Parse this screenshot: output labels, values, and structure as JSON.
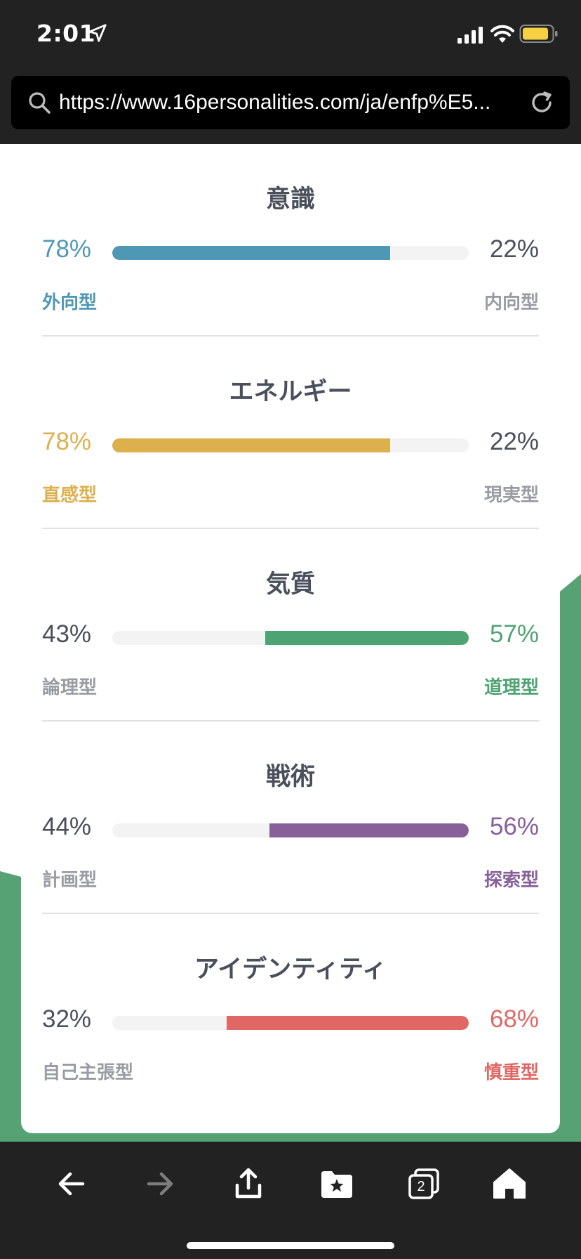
{
  "status_bar": {
    "time": "2:01"
  },
  "browser": {
    "url": "https://www.16personalities.com/ja/enfp%E5..."
  },
  "traits": [
    {
      "title": "意識",
      "left_label": "外向型",
      "left_percent": "78%",
      "right_label": "内向型",
      "right_percent": "22%",
      "fill_side": "left",
      "fill_fraction": 0.78,
      "color": "#4f98b5"
    },
    {
      "title": "エネルギー",
      "left_label": "直感型",
      "left_percent": "78%",
      "right_label": "現実型",
      "right_percent": "22%",
      "fill_side": "left",
      "fill_fraction": 0.78,
      "color": "#ddb04e"
    },
    {
      "title": "気質",
      "left_label": "論理型",
      "left_percent": "43%",
      "right_label": "道理型",
      "right_percent": "57%",
      "fill_side": "right",
      "fill_fraction": 0.57,
      "color": "#4ea372"
    },
    {
      "title": "戦術",
      "left_label": "計画型",
      "left_percent": "44%",
      "right_label": "探索型",
      "right_percent": "56%",
      "fill_side": "right",
      "fill_fraction": 0.56,
      "color": "#87609a"
    },
    {
      "title": "アイデンティティ",
      "left_label": "自己主張型",
      "left_percent": "32%",
      "right_label": "慎重型",
      "right_percent": "68%",
      "fill_side": "right",
      "fill_fraction": 0.68,
      "color": "#e06764"
    }
  ],
  "colors": {
    "neutral_text": "#4a4f5c",
    "neutral_label": "#9a9ca3",
    "track": "#f3f3f3",
    "page_accent": "#56a274",
    "chrome": "#222222"
  },
  "toolbar": {
    "tabs_count": "2",
    "buttons": [
      "back-icon",
      "forward-icon",
      "share-icon",
      "bookmarks-icon",
      "tabs-icon",
      "home-icon"
    ]
  }
}
